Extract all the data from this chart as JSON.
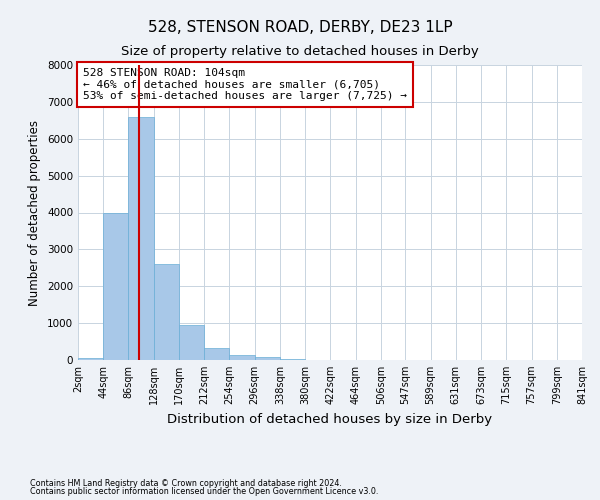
{
  "title": "528, STENSON ROAD, DERBY, DE23 1LP",
  "subtitle": "Size of property relative to detached houses in Derby",
  "xlabel": "Distribution of detached houses by size in Derby",
  "ylabel": "Number of detached properties",
  "footnote1": "Contains HM Land Registry data © Crown copyright and database right 2024.",
  "footnote2": "Contains public sector information licensed under the Open Government Licence v3.0.",
  "annotation_title": "528 STENSON ROAD: 104sqm",
  "annotation_line2": "← 46% of detached houses are smaller (6,705)",
  "annotation_line3": "53% of semi-detached houses are larger (7,725) →",
  "red_line_x": 104,
  "bar_edges": [
    2,
    44,
    86,
    128,
    170,
    212,
    254,
    296,
    338,
    380,
    422,
    464,
    506,
    547,
    589,
    631,
    673,
    715,
    757,
    799,
    841
  ],
  "bar_heights": [
    60,
    4000,
    6600,
    2600,
    950,
    320,
    130,
    80,
    20,
    0,
    0,
    0,
    0,
    0,
    0,
    0,
    0,
    0,
    0,
    0
  ],
  "bar_color": "#a8c8e8",
  "bar_edgecolor": "#6aaed6",
  "red_line_color": "#cc0000",
  "background_color": "#eef2f7",
  "plot_bg_color": "#ffffff",
  "grid_color": "#c8d4e0",
  "ylim": [
    0,
    8000
  ],
  "yticks": [
    0,
    1000,
    2000,
    3000,
    4000,
    5000,
    6000,
    7000,
    8000
  ],
  "annotation_box_color": "#ffffff",
  "annotation_box_edgecolor": "#cc0000",
  "title_fontsize": 11,
  "subtitle_fontsize": 9.5,
  "tick_label_fontsize": 7,
  "ylabel_fontsize": 8.5,
  "xlabel_fontsize": 9.5,
  "footnote_fontsize": 5.8,
  "annotation_fontsize": 8
}
